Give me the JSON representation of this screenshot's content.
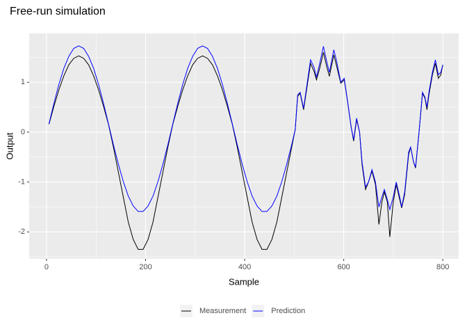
{
  "chart_data": {
    "type": "line",
    "title": "Free-run simulation",
    "x_label": "Sample",
    "y_label": "Output",
    "x": [
      5,
      15,
      25,
      35,
      45,
      55,
      65,
      75,
      85,
      95,
      105,
      115,
      125,
      135,
      145,
      155,
      165,
      175,
      185,
      195,
      205,
      215,
      225,
      235,
      245,
      255,
      265,
      275,
      285,
      295,
      305,
      315,
      325,
      335,
      345,
      355,
      365,
      375,
      385,
      395,
      405,
      415,
      425,
      435,
      445,
      455,
      465,
      475,
      485,
      495,
      502,
      507,
      512,
      519,
      525,
      533,
      540,
      545,
      552,
      559,
      566,
      571,
      580,
      585,
      594,
      601,
      608,
      615,
      620,
      626,
      632,
      637,
      644,
      650,
      657,
      664,
      671,
      677,
      682,
      688,
      693,
      700,
      706,
      713,
      717,
      723,
      731,
      735,
      741,
      745,
      752,
      759,
      764,
      768,
      772,
      779,
      785,
      791,
      796,
      800
    ],
    "series": [
      {
        "name": "Measurement",
        "color": "#000000",
        "values": [
          0.16,
          0.52,
          0.85,
          1.13,
          1.35,
          1.48,
          1.53,
          1.48,
          1.35,
          1.13,
          0.85,
          0.52,
          0.16,
          -0.3,
          -0.8,
          -1.3,
          -1.8,
          -2.15,
          -2.35,
          -2.35,
          -2.15,
          -1.8,
          -1.3,
          -0.8,
          -0.3,
          0.16,
          0.52,
          0.85,
          1.13,
          1.35,
          1.48,
          1.53,
          1.48,
          1.35,
          1.13,
          0.85,
          0.52,
          0.16,
          -0.3,
          -0.8,
          -1.3,
          -1.8,
          -2.15,
          -2.35,
          -2.35,
          -2.15,
          -1.8,
          -1.3,
          -0.8,
          -0.3,
          0.05,
          0.72,
          0.78,
          0.45,
          0.85,
          1.38,
          1.22,
          1.05,
          1.3,
          1.6,
          1.3,
          1.12,
          1.55,
          1.35,
          0.98,
          1.05,
          0.6,
          0.1,
          -0.18,
          0.25,
          0.0,
          -0.65,
          -1.15,
          -1.0,
          -0.78,
          -1.05,
          -1.85,
          -1.4,
          -1.2,
          -1.4,
          -2.1,
          -1.4,
          -1.05,
          -1.35,
          -1.52,
          -1.25,
          -0.45,
          -0.3,
          -0.6,
          -0.72,
          0.0,
          0.78,
          0.68,
          0.45,
          0.75,
          1.15,
          1.38,
          1.08,
          1.15,
          1.35
        ]
      },
      {
        "name": "Prediction",
        "color": "#0000ff",
        "values": [
          0.17,
          0.58,
          0.96,
          1.28,
          1.52,
          1.68,
          1.73,
          1.68,
          1.52,
          1.28,
          0.96,
          0.58,
          0.17,
          -0.25,
          -0.64,
          -0.99,
          -1.28,
          -1.48,
          -1.59,
          -1.59,
          -1.48,
          -1.28,
          -0.99,
          -0.64,
          -0.25,
          0.17,
          0.58,
          0.96,
          1.28,
          1.52,
          1.68,
          1.73,
          1.68,
          1.52,
          1.28,
          0.96,
          0.58,
          0.17,
          -0.25,
          -0.64,
          -0.99,
          -1.28,
          -1.48,
          -1.59,
          -1.59,
          -1.48,
          -1.28,
          -0.99,
          -0.64,
          -0.25,
          0.05,
          0.75,
          0.8,
          0.48,
          0.9,
          1.45,
          1.3,
          1.1,
          1.4,
          1.72,
          1.4,
          1.2,
          1.65,
          1.45,
          1.0,
          1.08,
          0.6,
          0.1,
          -0.15,
          0.28,
          0.0,
          -0.6,
          -1.1,
          -1.0,
          -0.75,
          -1.0,
          -1.5,
          -1.3,
          -1.15,
          -1.35,
          -1.55,
          -1.3,
          -1.0,
          -1.3,
          -1.5,
          -1.2,
          -0.4,
          -0.3,
          -0.6,
          -0.7,
          0.0,
          0.8,
          0.7,
          0.5,
          0.8,
          1.2,
          1.45,
          1.15,
          1.2,
          1.35
        ]
      }
    ],
    "xlim": [
      -35,
      832
    ],
    "ylim": [
      -2.54,
      1.98
    ],
    "xticks": [
      0,
      200,
      400,
      600,
      800
    ],
    "yticks": [
      -2,
      -1,
      0,
      1
    ],
    "grid": true,
    "legend": "bottom"
  }
}
